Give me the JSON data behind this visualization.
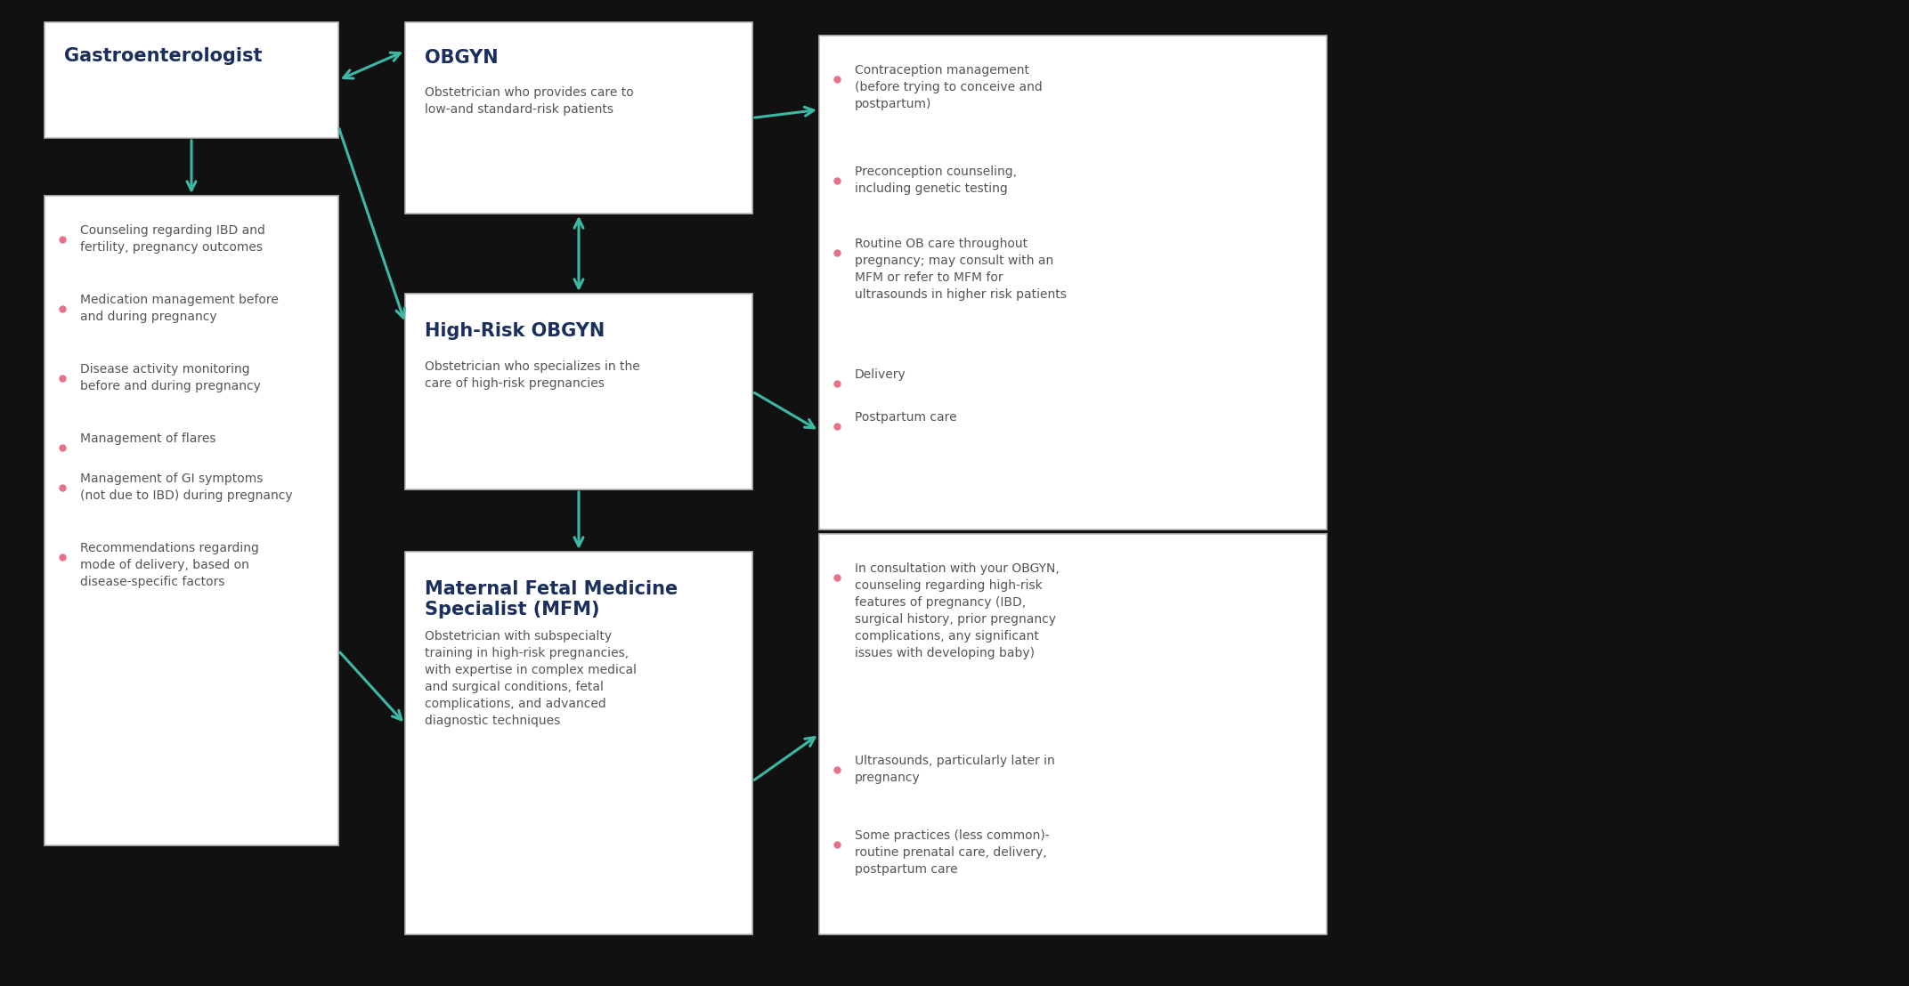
{
  "bg_color": "#111111",
  "box_bg": "#ffffff",
  "box_border": "#bbbbbb",
  "arrow_color": "#3db8a5",
  "title_color": "#1a2f5e",
  "bullet_color": "#e8708a",
  "text_color": "#555555",
  "gastro_title": "Gastroenterologist",
  "gastro_bullets": [
    "Counseling regarding IBD and\nfertility, pregnancy outcomes",
    "Medication management before\nand during pregnancy",
    "Disease activity monitoring\nbefore and during pregnancy",
    "Management of flares",
    "Management of GI symptoms\n(not due to IBD) during pregnancy",
    "Recommendations regarding\nmode of delivery, based on\ndisease-specific factors"
  ],
  "obgyn_title": "OBGYN",
  "obgyn_subtitle": "Obstetrician who provides care to\nlow-and standard-risk patients",
  "highrisk_title": "High-Risk OBGYN",
  "highrisk_subtitle": "Obstetrician who specializes in the\ncare of high-risk pregnancies",
  "mfm_title": "Maternal Fetal Medicine\nSpecialist (MFM)",
  "mfm_subtitle": "Obstetrician with subspecialty\ntraining in high-risk pregnancies,\nwith expertise in complex medical\nand surgical conditions, fetal\ncomplications, and advanced\ndiagnostic techniques",
  "obgyn_bullets": [
    "Contraception management\n(before trying to conceive and\npostpartum)",
    "Preconception counseling,\nincluding genetic testing",
    "Routine OB care throughout\npregnancy; may consult with an\nMFM or refer to MFM for\nultrasounds in higher risk patients",
    "Delivery",
    "Postpartum care"
  ],
  "mfm_bullets": [
    "In consultation with your OBGYN,\ncounseling regarding high-risk\nfeatures of pregnancy (IBD,\nsurgical history, prior pregnancy\ncomplications, any significant\nissues with developing baby)",
    "Ultrasounds, particularly later in\npregnancy",
    "Some practices (less common)-\nroutine prenatal care, delivery,\npostpartum care"
  ],
  "figsize": [
    21.44,
    11.08
  ],
  "dpi": 100
}
